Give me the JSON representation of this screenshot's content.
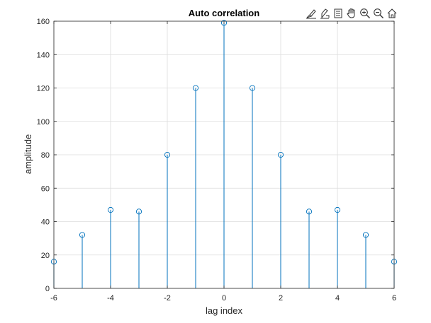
{
  "toolbar": {
    "icons": [
      "brush-icon",
      "data-tips-icon",
      "legend-icon",
      "pan-hand-icon",
      "zoom-in-icon",
      "zoom-out-icon",
      "home-icon"
    ]
  },
  "chart_data": {
    "type": "stem",
    "title": "Auto correlation",
    "xlabel": "lag index",
    "ylabel": "amplitude",
    "x": [
      -6,
      -5,
      -4,
      -3,
      -2,
      -1,
      0,
      1,
      2,
      3,
      4,
      5,
      6
    ],
    "values": [
      16,
      32,
      47,
      46,
      80,
      120,
      159,
      120,
      80,
      46,
      47,
      32,
      16
    ],
    "xlim": [
      -6,
      6
    ],
    "ylim": [
      0,
      160
    ],
    "xticks": [
      -6,
      -4,
      -2,
      0,
      2,
      4,
      6
    ],
    "xtick_labels": [
      "-6",
      "-4",
      "-2",
      "0",
      "2",
      "4",
      "6"
    ],
    "yticks": [
      0,
      20,
      40,
      60,
      80,
      100,
      120,
      140,
      160
    ],
    "ytick_labels": [
      "0",
      "20",
      "40",
      "60",
      "80",
      "100",
      "120",
      "140",
      "160"
    ],
    "grid": true,
    "series_color": "#0072BD",
    "axis_color": "#262626",
    "grid_color": "#dcdcdc"
  }
}
